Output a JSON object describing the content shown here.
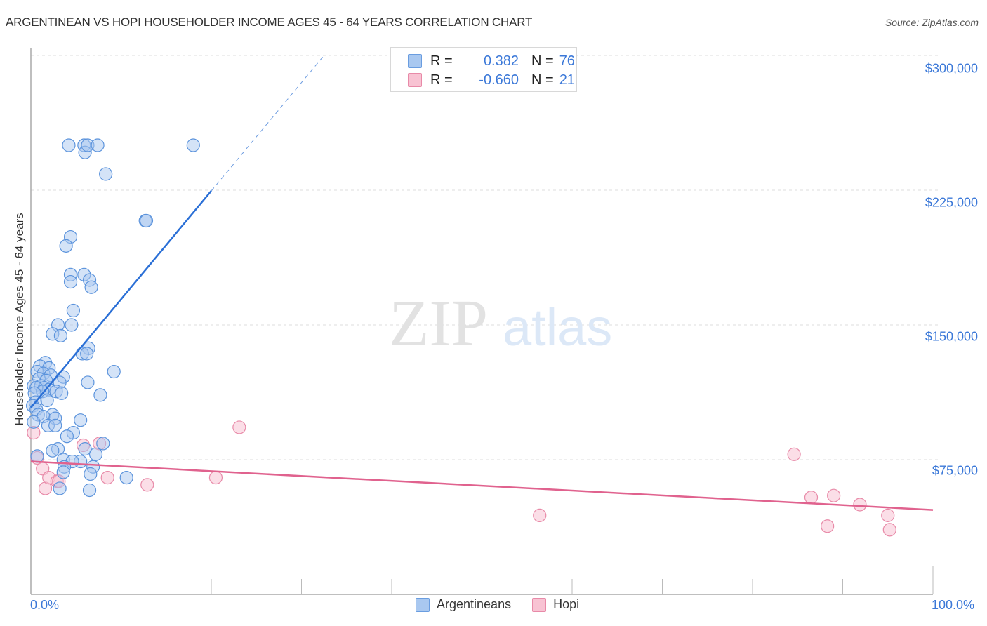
{
  "header": {
    "title": "ARGENTINEAN VS HOPI HOUSEHOLDER INCOME AGES 45 - 64 YEARS CORRELATION CHART",
    "source": "Source: ZipAtlas.com"
  },
  "watermark": {
    "zip": "ZIP",
    "atlas": "atlas"
  },
  "legend": {
    "rows": [
      {
        "r_label": "R =",
        "r_value": "0.382",
        "n_label": "N =",
        "n_value": "76",
        "color": "#a9c8f0",
        "border": "#6a9de0"
      },
      {
        "r_label": "R =",
        "r_value": "-0.660",
        "n_label": "N =",
        "n_value": "21",
        "color": "#f8c3d3",
        "border": "#e88aa8"
      }
    ]
  },
  "bottom_legend": [
    {
      "label": "Argentineans",
      "color": "#a9c8f0",
      "border": "#6a9de0"
    },
    {
      "label": "Hopi",
      "color": "#f8c3d3",
      "border": "#e88aa8"
    }
  ],
  "axes": {
    "ylabel": "Householder Income Ages 45 - 64 years",
    "y_ticks": [
      "$300,000",
      "$225,000",
      "$150,000",
      "$75,000"
    ],
    "x_ticks": [
      "0.0%",
      "100.0%"
    ]
  },
  "colors": {
    "blue_fill": "#a9c8f0",
    "blue_stroke": "#5b93dc",
    "blue_line": "#2a6fd6",
    "pink_fill": "#f8c3d3",
    "pink_stroke": "#e88aa8",
    "pink_line": "#e0628e",
    "tick_text": "#3b78d8",
    "grid": "#dddddd"
  },
  "chart_data": {
    "type": "scatter",
    "title": "ARGENTINEAN VS HOPI HOUSEHOLDER INCOME AGES 45 - 64 YEARS CORRELATION CHART",
    "xlabel": "",
    "ylabel": "Householder Income Ages 45 - 64 years",
    "xlim": [
      0,
      100
    ],
    "ylim": [
      0,
      305000
    ],
    "x_tick_labels": [
      "0.0%",
      "100.0%"
    ],
    "y_ticks": [
      75000,
      150000,
      225000,
      300000
    ],
    "y_tick_labels": [
      "$75,000",
      "$150,000",
      "$225,000",
      "$300,000"
    ],
    "grid": true,
    "legend_position": "top-center",
    "series": [
      {
        "name": "Argentineans",
        "r": 0.382,
        "n": 76,
        "trend": {
          "x0": 0,
          "y0": 104000,
          "x1": 32.5,
          "y1": 300000,
          "solid_until_x": 20
        },
        "points": [
          [
            4.2,
            250000
          ],
          [
            5.9,
            250000
          ],
          [
            6.0,
            246000
          ],
          [
            6.3,
            250000
          ],
          [
            7.4,
            250000
          ],
          [
            18.0,
            250000
          ],
          [
            8.3,
            234000
          ],
          [
            12.7,
            208000
          ],
          [
            12.8,
            208000
          ],
          [
            4.4,
            199000
          ],
          [
            3.9,
            194000
          ],
          [
            4.4,
            178000
          ],
          [
            5.9,
            178000
          ],
          [
            6.5,
            175000
          ],
          [
            4.4,
            174000
          ],
          [
            6.7,
            171000
          ],
          [
            4.7,
            158000
          ],
          [
            3.0,
            150000
          ],
          [
            4.5,
            150000
          ],
          [
            2.4,
            145000
          ],
          [
            3.3,
            144000
          ],
          [
            6.4,
            137000
          ],
          [
            5.7,
            134000
          ],
          [
            6.2,
            134000
          ],
          [
            9.2,
            124000
          ],
          [
            1.6,
            129000
          ],
          [
            1.0,
            127000
          ],
          [
            2.0,
            126000
          ],
          [
            0.7,
            124000
          ],
          [
            1.4,
            123000
          ],
          [
            2.2,
            122000
          ],
          [
            3.6,
            121000
          ],
          [
            0.9,
            120000
          ],
          [
            1.7,
            119000
          ],
          [
            3.2,
            118000
          ],
          [
            6.3,
            118000
          ],
          [
            0.3,
            116000
          ],
          [
            1.1,
            116000
          ],
          [
            1.5,
            115000
          ],
          [
            0.6,
            115000
          ],
          [
            2.0,
            114000
          ],
          [
            2.8,
            113000
          ],
          [
            1.3,
            113000
          ],
          [
            0.4,
            112000
          ],
          [
            3.4,
            112000
          ],
          [
            7.7,
            111000
          ],
          [
            0.5,
            107000
          ],
          [
            1.8,
            108000
          ],
          [
            0.2,
            105000
          ],
          [
            0.6,
            103000
          ],
          [
            2.4,
            100000
          ],
          [
            0.8,
            100000
          ],
          [
            1.4,
            99000
          ],
          [
            2.7,
            98000
          ],
          [
            5.5,
            97000
          ],
          [
            0.3,
            96000
          ],
          [
            1.9,
            94000
          ],
          [
            2.7,
            94000
          ],
          [
            4.7,
            90000
          ],
          [
            4.0,
            88000
          ],
          [
            8.0,
            84000
          ],
          [
            3.0,
            81000
          ],
          [
            6.0,
            81000
          ],
          [
            2.4,
            80000
          ],
          [
            7.2,
            78000
          ],
          [
            0.7,
            77000
          ],
          [
            3.6,
            75000
          ],
          [
            5.5,
            74000
          ],
          [
            4.6,
            74000
          ],
          [
            3.7,
            71000
          ],
          [
            6.9,
            71000
          ],
          [
            3.6,
            68000
          ],
          [
            6.6,
            67000
          ],
          [
            10.6,
            65000
          ],
          [
            3.2,
            59000
          ],
          [
            6.5,
            58000
          ]
        ]
      },
      {
        "name": "Hopi",
        "r": -0.66,
        "n": 21,
        "trend": {
          "x0": 0,
          "y0": 74000,
          "x1": 100,
          "y1": 47000
        },
        "points": [
          [
            0.3,
            90000
          ],
          [
            0.7,
            76000
          ],
          [
            1.3,
            70000
          ],
          [
            1.6,
            59000
          ],
          [
            2.0,
            65000
          ],
          [
            2.9,
            63000
          ],
          [
            3.1,
            63000
          ],
          [
            5.8,
            83000
          ],
          [
            7.6,
            84000
          ],
          [
            8.5,
            65000
          ],
          [
            12.9,
            61000
          ],
          [
            20.5,
            65000
          ],
          [
            23.1,
            93000
          ],
          [
            56.4,
            44000
          ],
          [
            84.6,
            78000
          ],
          [
            86.5,
            54000
          ],
          [
            88.3,
            38000
          ],
          [
            89.0,
            55000
          ],
          [
            91.9,
            50000
          ],
          [
            95.0,
            44000
          ],
          [
            95.2,
            36000
          ]
        ]
      }
    ]
  }
}
